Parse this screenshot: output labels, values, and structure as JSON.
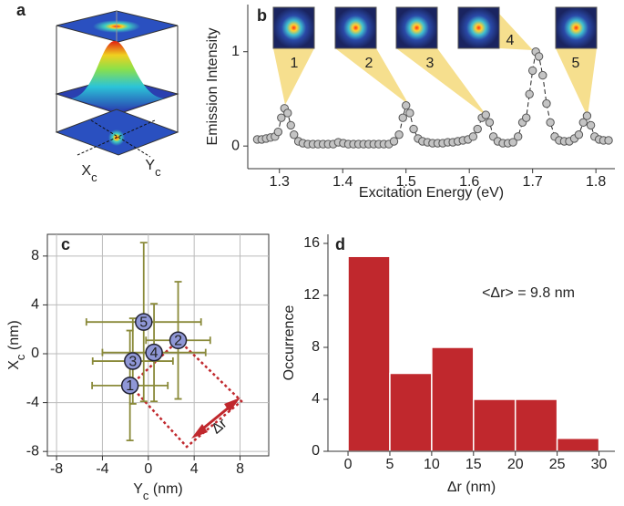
{
  "chart_data": [
    {
      "type": "diagram",
      "panel": "a",
      "labels": [
        [
          "X",
          "c"
        ],
        [
          "Y",
          "c"
        ]
      ]
    },
    {
      "type": "line",
      "panel": "b",
      "xlabel": "Excitation Energy (eV)",
      "ylabel": "Emission Intensity",
      "x": [
        1.265,
        1.272,
        1.279,
        1.286,
        1.293,
        1.298,
        1.303,
        1.308,
        1.313,
        1.318,
        1.323,
        1.33,
        1.337,
        1.345,
        1.353,
        1.361,
        1.369,
        1.377,
        1.385,
        1.393,
        1.401,
        1.409,
        1.417,
        1.425,
        1.433,
        1.441,
        1.449,
        1.457,
        1.465,
        1.473,
        1.481,
        1.489,
        1.495,
        1.5,
        1.506,
        1.512,
        1.519,
        1.526,
        1.534,
        1.542,
        1.55,
        1.558,
        1.566,
        1.574,
        1.582,
        1.59,
        1.598,
        1.606,
        1.613,
        1.62,
        1.626,
        1.632,
        1.638,
        1.645,
        1.653,
        1.661,
        1.669,
        1.677,
        1.684,
        1.69,
        1.695,
        1.7,
        1.705,
        1.71,
        1.716,
        1.722,
        1.728,
        1.735,
        1.742,
        1.75,
        1.758,
        1.766,
        1.773,
        1.78,
        1.786,
        1.792,
        1.798,
        1.805,
        1.812,
        1.82
      ],
      "values": [
        0.07,
        0.07,
        0.08,
        0.09,
        0.1,
        0.15,
        0.3,
        0.4,
        0.35,
        0.22,
        0.12,
        0.05,
        0.03,
        0.02,
        0.02,
        0.02,
        0.02,
        0.02,
        0.02,
        0.04,
        0.03,
        0.02,
        0.02,
        0.02,
        0.02,
        0.02,
        0.02,
        0.02,
        0.02,
        0.02,
        0.05,
        0.12,
        0.3,
        0.43,
        0.35,
        0.18,
        0.08,
        0.05,
        0.04,
        0.03,
        0.03,
        0.03,
        0.04,
        0.04,
        0.05,
        0.06,
        0.07,
        0.1,
        0.18,
        0.3,
        0.33,
        0.25,
        0.1,
        0.05,
        0.03,
        0.03,
        0.04,
        0.1,
        0.25,
        0.3,
        0.55,
        0.8,
        1.0,
        0.95,
        0.75,
        0.45,
        0.25,
        0.1,
        0.06,
        0.05,
        0.05,
        0.08,
        0.12,
        0.25,
        0.32,
        0.22,
        0.1,
        0.07,
        0.06,
        0.06
      ],
      "color": "#c4c4c4",
      "line_style": "dashed",
      "xlim": [
        1.25,
        1.83
      ],
      "xticks": [
        1.3,
        1.4,
        1.5,
        1.6,
        1.7,
        1.8
      ],
      "ylim": [
        -0.24,
        1.5
      ],
      "yticks": [
        0,
        1
      ],
      "insets": [
        "1",
        "2",
        "3",
        "4",
        "5"
      ]
    },
    {
      "type": "scatter",
      "panel": "c",
      "xlabel": [
        "Y",
        "c",
        " (nm)"
      ],
      "ylabel": [
        "X",
        "c",
        " (nm)"
      ],
      "x": [
        -1.6,
        2.6,
        -1.35,
        0.5,
        -0.4
      ],
      "values": [
        -2.6,
        1.1,
        -0.6,
        0.1,
        2.6
      ],
      "xerr": [
        3.3,
        2.8,
        3.5,
        4.5,
        5.0
      ],
      "yerr": [
        4.5,
        4.8,
        3.5,
        4.0,
        6.5
      ],
      "labels": [
        "1",
        "2",
        "3",
        "4",
        "5"
      ],
      "color": "#8f97d6",
      "error_color": "#8a8a3a",
      "xlim": [
        -8.8,
        10.5
      ],
      "xticks": [
        -8,
        -4,
        0,
        4,
        8
      ],
      "ylim": [
        -8.36,
        9.78
      ],
      "yticks": [
        -8,
        -4,
        0,
        4,
        8
      ],
      "grid": true,
      "annotation": "Δr"
    },
    {
      "type": "histogram",
      "panel": "d",
      "xlabel": "Δr (nm)",
      "ylabel": "Occurrence",
      "bins": [
        0,
        5,
        10,
        15,
        20,
        25,
        30
      ],
      "values": [
        15,
        6,
        8,
        4,
        4,
        1
      ],
      "color": "#c0282d",
      "xlim": [
        -2.4,
        31.9
      ],
      "xticks": [
        0,
        5,
        10,
        15,
        20,
        25,
        30
      ],
      "ylim": [
        0,
        16.7
      ],
      "yticks": [
        0,
        4,
        8,
        12,
        16
      ],
      "annotation": "<Δr> = 9.8 nm"
    }
  ]
}
